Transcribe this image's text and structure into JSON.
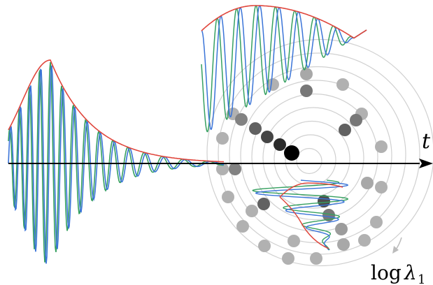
{
  "labels": {
    "time_axis": "t",
    "log_word": "log",
    "lambda_symbol": "λ",
    "lambda_subscript": "1"
  },
  "colors": {
    "envelope": "#e0463c",
    "wave_blue": "#3a74d8",
    "wave_green": "#36a060",
    "ring": "#d0d0d0",
    "axis": "#000000",
    "dot_dark": "#000000",
    "dot_light": "#d8d8d8",
    "rotation_arrow": "#bcbcbc"
  },
  "icons": {
    "axis_arrow": "arrow-right-icon",
    "rotation_arrow": "arrow-down-left-icon"
  }
}
